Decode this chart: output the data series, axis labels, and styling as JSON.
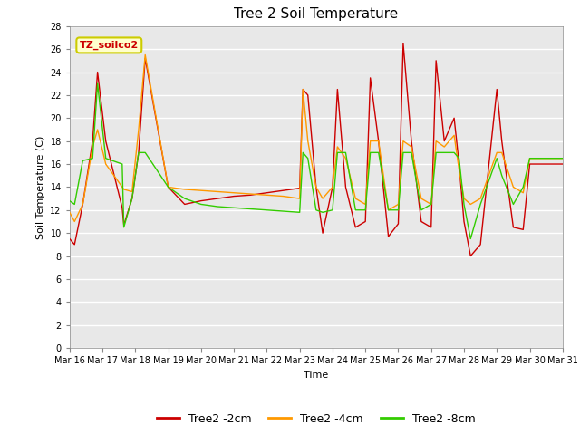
{
  "title": "Tree 2 Soil Temperature",
  "xlabel": "Time",
  "ylabel": "Soil Temperature (C)",
  "ylim": [
    0,
    28
  ],
  "yticks": [
    0,
    2,
    4,
    6,
    8,
    10,
    12,
    14,
    16,
    18,
    20,
    22,
    24,
    26,
    28
  ],
  "xtick_labels": [
    "Mar 16",
    "Mar 17",
    "Mar 18",
    "Mar 19",
    "Mar 20",
    "Mar 21",
    "Mar 22",
    "Mar 23",
    "Mar 24",
    "Mar 25",
    "Mar 26",
    "Mar 27",
    "Mar 28",
    "Mar 29",
    "Mar 30",
    "Mar 31"
  ],
  "annotation_text": "TZ_soilco2",
  "annotation_bg": "#ffffcc",
  "annotation_border": "#cccc00",
  "line_colors": [
    "#cc0000",
    "#ff9900",
    "#33cc00"
  ],
  "line_labels": [
    "Tree2 -2cm",
    "Tree2 -4cm",
    "Tree2 -8cm"
  ],
  "background_color": "#e8e8e8",
  "grid_color": "#ffffff",
  "title_fontsize": 11,
  "axis_label_fontsize": 8,
  "tick_fontsize": 7,
  "x_2cm": [
    0,
    0.15,
    0.4,
    0.7,
    0.85,
    1.1,
    1.6,
    1.65,
    1.9,
    2.1,
    2.3,
    3.0,
    3.5,
    4.0,
    4.5,
    5.0,
    5.5,
    6.0,
    6.5,
    7.0,
    7.1,
    7.25,
    7.5,
    7.7,
    8.0,
    8.15,
    8.4,
    8.7,
    9.0,
    9.15,
    9.4,
    9.7,
    10.0,
    10.15,
    10.4,
    10.7,
    11.0,
    11.15,
    11.4,
    11.7,
    11.85,
    12.0,
    12.2,
    12.5,
    13.0,
    13.15,
    13.5,
    13.8,
    14.0,
    14.3,
    14.6,
    15.0
  ],
  "y_2cm": [
    9.5,
    9.0,
    12.5,
    18.0,
    24.0,
    18.0,
    12.2,
    10.7,
    13.0,
    17.0,
    25.2,
    14.0,
    12.5,
    12.8,
    13.0,
    13.2,
    13.3,
    13.5,
    13.7,
    13.9,
    22.5,
    22.0,
    14.0,
    10.0,
    14.0,
    22.5,
    14.0,
    10.5,
    11.0,
    23.5,
    18.0,
    9.7,
    10.8,
    26.5,
    18.0,
    11.0,
    10.5,
    25.0,
    18.0,
    20.0,
    16.0,
    11.0,
    8.0,
    9.0,
    22.5,
    18.0,
    10.5,
    10.3,
    16.0,
    16.0,
    16.0,
    16.0
  ],
  "x_4cm": [
    0,
    0.15,
    0.4,
    0.7,
    0.85,
    1.1,
    1.6,
    1.65,
    1.9,
    2.1,
    2.3,
    3.0,
    3.5,
    4.0,
    4.5,
    5.0,
    5.5,
    6.0,
    6.5,
    7.0,
    7.1,
    7.25,
    7.5,
    7.7,
    8.0,
    8.15,
    8.4,
    8.7,
    9.0,
    9.15,
    9.4,
    9.7,
    10.0,
    10.15,
    10.4,
    10.7,
    11.0,
    11.15,
    11.4,
    11.7,
    11.85,
    12.0,
    12.2,
    12.5,
    13.0,
    13.15,
    13.5,
    13.8,
    14.0,
    14.3,
    14.6,
    15.0
  ],
  "y_4cm": [
    11.8,
    11.0,
    12.5,
    17.5,
    19.0,
    16.0,
    14.0,
    13.8,
    13.6,
    19.0,
    25.5,
    14.0,
    13.8,
    13.7,
    13.6,
    13.5,
    13.4,
    13.3,
    13.2,
    13.0,
    22.5,
    18.0,
    14.0,
    13.0,
    14.0,
    17.5,
    16.5,
    13.0,
    12.5,
    18.0,
    18.0,
    12.0,
    12.5,
    18.0,
    17.5,
    13.0,
    12.5,
    18.0,
    17.5,
    18.5,
    15.5,
    13.0,
    12.5,
    13.0,
    17.0,
    17.0,
    14.0,
    13.5,
    16.5,
    16.5,
    16.5,
    16.5
  ],
  "x_8cm": [
    0,
    0.15,
    0.4,
    0.7,
    0.85,
    1.1,
    1.6,
    1.65,
    1.9,
    2.1,
    2.3,
    3.0,
    3.5,
    4.0,
    4.5,
    5.0,
    5.5,
    6.0,
    6.5,
    7.0,
    7.1,
    7.25,
    7.5,
    7.7,
    8.0,
    8.15,
    8.4,
    8.7,
    9.0,
    9.15,
    9.4,
    9.7,
    10.0,
    10.15,
    10.4,
    10.7,
    11.0,
    11.15,
    11.4,
    11.7,
    11.85,
    12.0,
    12.2,
    12.5,
    13.0,
    13.15,
    13.5,
    13.8,
    14.0,
    14.3,
    14.6,
    15.0
  ],
  "y_8cm": [
    12.8,
    12.5,
    16.3,
    16.5,
    23.0,
    16.5,
    16.0,
    10.5,
    13.0,
    17.0,
    17.0,
    14.0,
    13.0,
    12.5,
    12.3,
    12.2,
    12.1,
    12.0,
    11.9,
    11.8,
    17.0,
    16.5,
    12.0,
    11.8,
    12.0,
    17.0,
    17.0,
    12.0,
    12.0,
    17.0,
    17.0,
    12.0,
    12.0,
    17.0,
    17.0,
    12.0,
    12.5,
    17.0,
    17.0,
    17.0,
    16.5,
    12.5,
    9.5,
    12.5,
    16.5,
    15.0,
    12.5,
    14.0,
    16.5,
    16.5,
    16.5,
    16.5
  ]
}
